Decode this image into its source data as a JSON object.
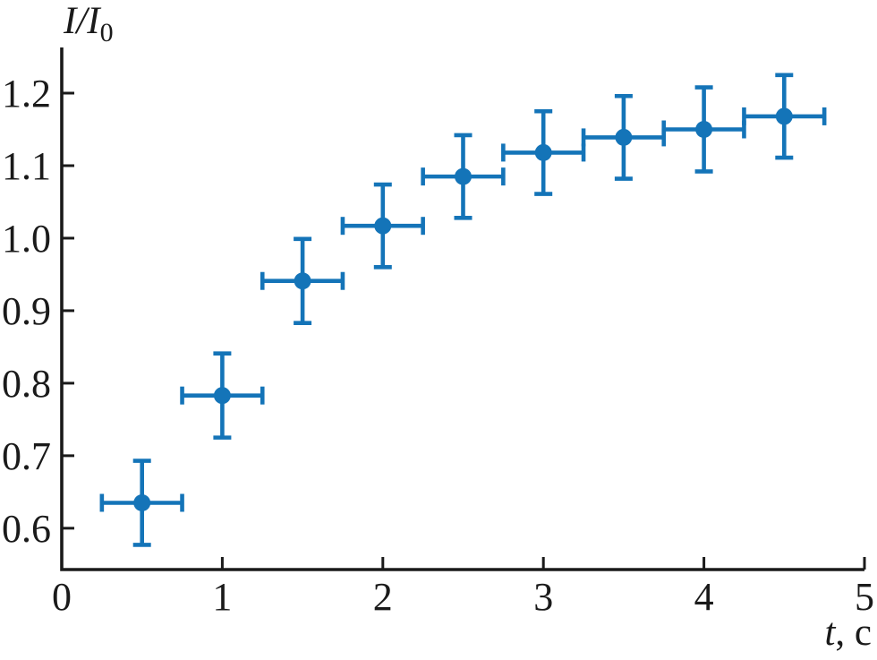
{
  "figure": {
    "y_axis_title": {
      "main": "I/I",
      "sub": "0"
    },
    "x_axis_title": {
      "var": "t",
      "unit": ", с"
    }
  },
  "chart_data": {
    "type": "scatter",
    "title": "",
    "ylabel": "I/I₀",
    "xlabel": "t, с",
    "grid": false,
    "legend": "none",
    "marker_color": "#1474b8",
    "axis_color": "#1a1a1a",
    "xlim": [
      0,
      5
    ],
    "ylim": [
      0.543,
      1.263
    ],
    "x_ticks": [
      0,
      1,
      2,
      3,
      4,
      5
    ],
    "y_ticks": [
      0.6,
      0.7,
      0.8,
      0.9,
      1.0,
      1.1,
      1.2
    ],
    "points": [
      {
        "x": 0.5,
        "y": 0.635,
        "xerr": 0.25,
        "yerr": 0.058
      },
      {
        "x": 1.0,
        "y": 0.783,
        "xerr": 0.25,
        "yerr": 0.058
      },
      {
        "x": 1.5,
        "y": 0.941,
        "xerr": 0.25,
        "yerr": 0.058
      },
      {
        "x": 2.0,
        "y": 1.017,
        "xerr": 0.25,
        "yerr": 0.057
      },
      {
        "x": 2.5,
        "y": 1.085,
        "xerr": 0.25,
        "yerr": 0.057
      },
      {
        "x": 3.0,
        "y": 1.118,
        "xerr": 0.25,
        "yerr": 0.057
      },
      {
        "x": 3.5,
        "y": 1.139,
        "xerr": 0.25,
        "yerr": 0.057
      },
      {
        "x": 4.0,
        "y": 1.15,
        "xerr": 0.25,
        "yerr": 0.058
      },
      {
        "x": 4.5,
        "y": 1.168,
        "xerr": 0.25,
        "yerr": 0.057
      }
    ]
  }
}
